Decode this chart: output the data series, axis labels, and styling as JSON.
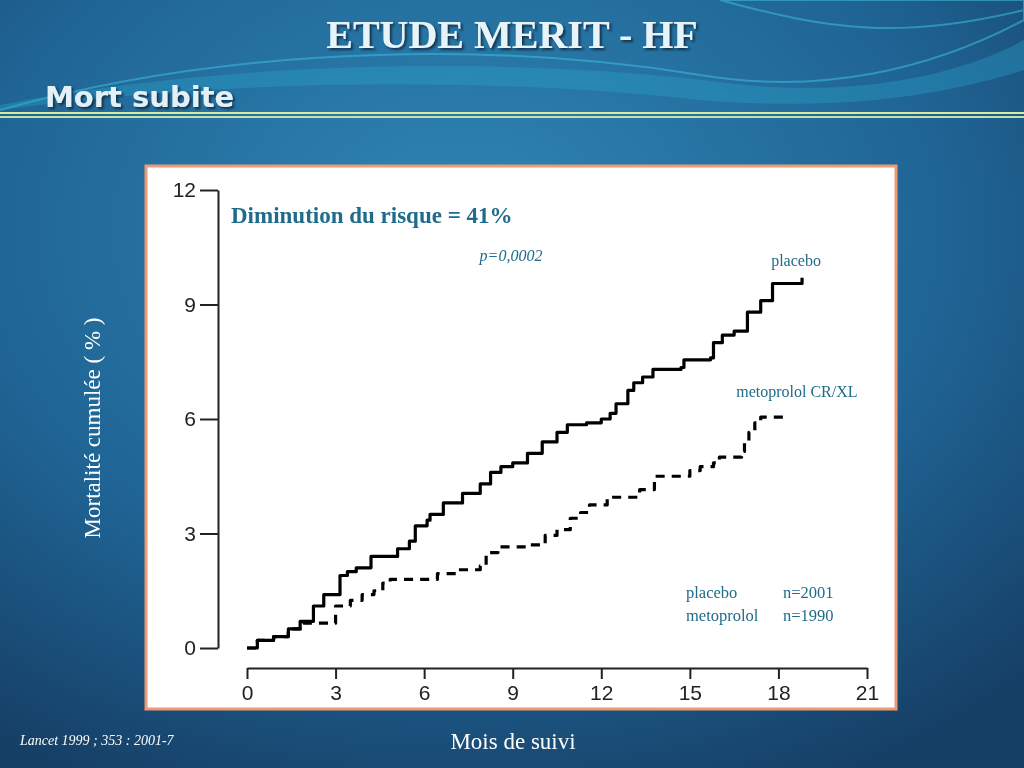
{
  "chart_data": {
    "type": "step",
    "title": "ETUDE MERIT - HF",
    "subtitle": "Mort subite",
    "xlabel": "Mois de suivi",
    "ylabel": "Mortalité cumulée ( % )",
    "xlim": [
      0,
      21
    ],
    "ylim": [
      0,
      12
    ],
    "xticks": [
      0,
      3,
      6,
      9,
      12,
      15,
      18,
      21
    ],
    "yticks": [
      0,
      3,
      6,
      9,
      12
    ],
    "series": [
      {
        "name": "placebo",
        "color": "#000000",
        "line_style": "solid",
        "x": [
          0,
          0.35,
          0.9,
          1.4,
          1.8,
          2.25,
          2.6,
          3.15,
          3.4,
          3.7,
          4.2,
          5.1,
          5.5,
          5.7,
          6.1,
          6.2,
          6.65,
          7.3,
          7.9,
          8.25,
          8.6,
          9.0,
          9.5,
          10.0,
          10.5,
          10.85,
          11.5,
          12.0,
          12.3,
          12.5,
          12.9,
          13.1,
          13.4,
          13.75,
          14.7,
          14.8,
          15.7,
          15.8,
          16.1,
          16.5,
          16.95,
          17.4,
          17.8,
          18.8
        ],
        "values": [
          0,
          0.2,
          0.3,
          0.5,
          0.7,
          1.1,
          1.4,
          1.9,
          2.0,
          2.1,
          2.4,
          2.6,
          2.8,
          3.2,
          3.35,
          3.5,
          3.8,
          4.05,
          4.3,
          4.6,
          4.75,
          4.85,
          5.1,
          5.4,
          5.65,
          5.85,
          5.9,
          6.0,
          6.15,
          6.4,
          6.75,
          6.95,
          7.1,
          7.3,
          7.35,
          7.55,
          7.6,
          8.0,
          8.2,
          8.3,
          8.8,
          9.1,
          9.55,
          9.7
        ]
      },
      {
        "name": "metoprolol CR/XL",
        "color": "#000000",
        "line_style": "dashed",
        "x": [
          0,
          0.35,
          0.9,
          1.4,
          1.9,
          3.0,
          3.5,
          3.9,
          4.3,
          4.6,
          4.85,
          6.45,
          7.1,
          7.9,
          8.1,
          8.5,
          9.5,
          10.1,
          10.5,
          10.95,
          11.3,
          11.6,
          12.2,
          13.3,
          13.8,
          15.0,
          15.35,
          15.8,
          16.0,
          16.75,
          16.85,
          17.0,
          17.2,
          17.4,
          18.15
        ],
        "values": [
          0,
          0.2,
          0.3,
          0.5,
          0.65,
          1.1,
          1.25,
          1.4,
          1.5,
          1.7,
          1.8,
          1.95,
          2.05,
          2.15,
          2.5,
          2.65,
          2.7,
          2.95,
          3.1,
          3.4,
          3.55,
          3.75,
          3.95,
          4.15,
          4.5,
          4.65,
          4.75,
          4.85,
          5.0,
          5.15,
          5.4,
          5.65,
          5.9,
          6.05,
          6.05
        ]
      }
    ],
    "annotations": [
      "Diminution du risque = 41%",
      "p=0,0002",
      "placebo n=2001",
      "metoprolol n=1990",
      "Lancet 1999 ; 353 : 2001-7"
    ]
  }
}
